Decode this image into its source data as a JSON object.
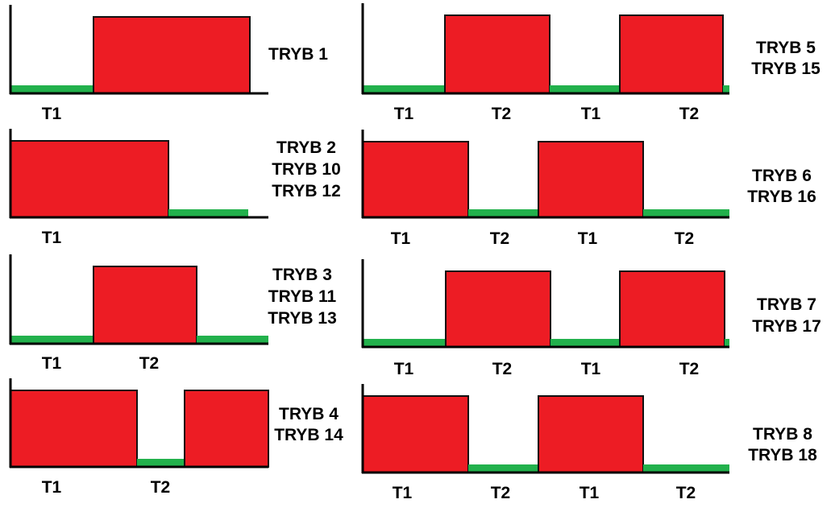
{
  "colors": {
    "high": "#ed1c24",
    "low": "#22b14c",
    "axis": "#000000",
    "outline": "#111111"
  },
  "panels": [
    {
      "id": "tryb-1",
      "modes": [
        "TRYB 1"
      ],
      "segments": [
        {
          "level": "low",
          "label": "T1"
        },
        {
          "level": "high",
          "label": ""
        }
      ]
    },
    {
      "id": "tryb-2",
      "modes": [
        "TRYB 2",
        "TRYB 10",
        "TRYB 12"
      ],
      "segments": [
        {
          "level": "high",
          "label": "T1"
        },
        {
          "level": "low",
          "label": ""
        }
      ]
    },
    {
      "id": "tryb-3",
      "modes": [
        "TRYB 3",
        "TRYB 11",
        "TRYB 13"
      ],
      "segments": [
        {
          "level": "low",
          "label": "T1"
        },
        {
          "level": "high",
          "label": "T2"
        },
        {
          "level": "low",
          "label": ""
        }
      ]
    },
    {
      "id": "tryb-4",
      "modes": [
        "TRYB 4",
        "TRYB 14"
      ],
      "segments": [
        {
          "level": "high",
          "label": "T1"
        },
        {
          "level": "low",
          "label": "T2"
        },
        {
          "level": "high",
          "label": ""
        }
      ]
    },
    {
      "id": "tryb-5",
      "modes": [
        "TRYB 5",
        "TRYB 15"
      ],
      "segments": [
        {
          "level": "low",
          "label": "T1"
        },
        {
          "level": "high",
          "label": "T2"
        },
        {
          "level": "low",
          "label": "T1"
        },
        {
          "level": "high",
          "label": "T2"
        },
        {
          "level": "low",
          "label": ""
        }
      ]
    },
    {
      "id": "tryb-6",
      "modes": [
        "TRYB 6",
        "TRYB 16"
      ],
      "segments": [
        {
          "level": "high",
          "label": "T1"
        },
        {
          "level": "low",
          "label": "T2"
        },
        {
          "level": "high",
          "label": "T1"
        },
        {
          "level": "low",
          "label": "T2"
        }
      ]
    },
    {
      "id": "tryb-7",
      "modes": [
        "TRYB 7",
        "TRYB 17"
      ],
      "segments": [
        {
          "level": "low",
          "label": "T1"
        },
        {
          "level": "high",
          "label": "T2"
        },
        {
          "level": "low",
          "label": "T1"
        },
        {
          "level": "high",
          "label": "T2"
        },
        {
          "level": "low",
          "label": ""
        }
      ]
    },
    {
      "id": "tryb-8",
      "modes": [
        "TRYB 8",
        "TRYB 18"
      ],
      "segments": [
        {
          "level": "high",
          "label": "T1"
        },
        {
          "level": "low",
          "label": "T2"
        },
        {
          "level": "high",
          "label": "T1"
        },
        {
          "level": "low",
          "label": "T2"
        }
      ]
    }
  ]
}
